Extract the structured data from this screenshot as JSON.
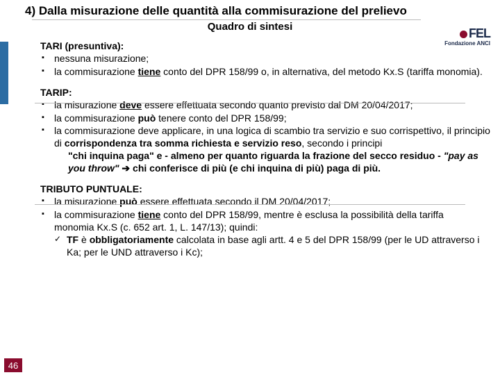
{
  "title": "4) Dalla misurazione delle quantità alla commisurazione del prelievo",
  "subtitle": "Quadro di sintesi",
  "logo_text": "FEL",
  "logo_sub": "Fondazione ANCI",
  "page_num": "46",
  "s1": {
    "head": "TARI (presuntiva):",
    "b1": "nessuna misurazione;",
    "b2a": "la commisurazione ",
    "b2b": "tiene",
    "b2c": " conto del DPR 158/99 o, in alternativa, del metodo Kx.S (tariffa monomia)."
  },
  "s2": {
    "head": "TARIP:",
    "b1a": "la misurazione ",
    "b1b": "deve",
    "b1c": " essere effettuata secondo quanto previsto dal DM 20/04/2017;",
    "b2a": "la commisurazione ",
    "b2b": "può",
    "b2c": " tenere conto del DPR 158/99;",
    "b3": "la commisurazione deve applicare, in una logica di scambio tra servizio e suo corrispettivo, il principio di ",
    "b3bold": "corrispondenza tra somma richiesta e servizio reso",
    "b3tail": ", secondo i principi",
    "q1": "\"chi inquina paga\" e - almeno per quanto riguarda la frazione del secco residuo - ",
    "q2": "\"pay as you throw\"",
    "arrow": " ➔ ",
    "q3": "chi conferisce di più (e chi inquina di più) paga di più."
  },
  "s3": {
    "head": "TRIBUTO PUNTUALE:",
    "b1a": "la misurazione ",
    "b1b": "può",
    "b1c": " essere effettuata secondo il DM 20/04/2017;",
    "b2a": "la commisurazione ",
    "b2b": "tiene",
    "b2c": " conto del DPR 158/99, mentre è esclusa la possibilità della tariffa",
    "b2d": "monomia Kx.S (c. 652 art. 1, L. 147/13); quindi:",
    "c1a": "TF",
    "c1b": " è ",
    "c1c": "obbligatoriamente",
    "c1d": " calcolata in base agli artt. 4 e 5 del DPR 158/99 (per le UD attraverso i Ka; per le UND attraverso i Kc);"
  }
}
